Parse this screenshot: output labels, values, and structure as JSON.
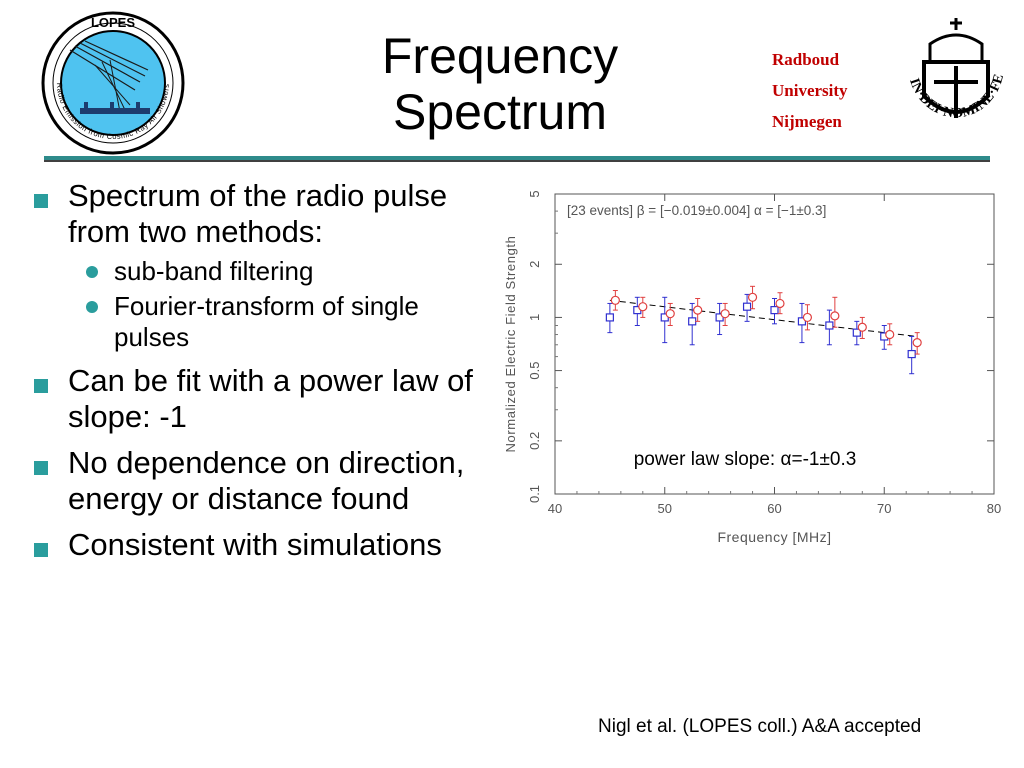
{
  "slide": {
    "title_line1": "Frequency",
    "title_line2": "Spectrum",
    "university": [
      "Radboud",
      "University",
      "Nijmegen"
    ],
    "lopes_logo_text": "LOPES",
    "lopes_logo_ring": "Radio Emission from Cosmic Ray Air Showers",
    "seal_text": "IN·DEI·NOMINE·FELICITER",
    "citation": "Nigl et al. (LOPES coll.) A&A accepted"
  },
  "bullets": [
    {
      "text": "Spectrum of the radio pulse from two methods:",
      "sub": [
        "sub-band filtering",
        "Fourier-transform of single pulses"
      ]
    },
    {
      "text": "Can be fit with a power law of slope: -1",
      "sub": []
    },
    {
      "text": "No dependence on direction, energy or distance found",
      "sub": []
    },
    {
      "text": "Consistent with simulations",
      "sub": []
    }
  ],
  "colors": {
    "accent": "#2a9d9d",
    "university_red": "#c00000",
    "series_blue": "#3030d0",
    "series_red": "#e04040"
  },
  "chart_data": {
    "type": "scatter",
    "xlabel": "Frequency [MHz]",
    "ylabel": "Normalized Electric Field Strength",
    "annotation": "[23 events]  β = [−0.019±0.004]  α = [−1±0.3]",
    "caption": "power law slope: α=-1±0.3",
    "xlim": [
      40,
      80
    ],
    "ylim": [
      0.1,
      5
    ],
    "yscale": "log",
    "xticks": [
      40,
      50,
      60,
      70,
      80
    ],
    "yticks": [
      0.1,
      0.2,
      0.5,
      1,
      2,
      5
    ],
    "ytick_labels": [
      "0.1",
      "0.2",
      "0.5",
      "1",
      "2",
      "5"
    ],
    "series": [
      {
        "marker": "square",
        "color": "#3030d0",
        "x": [
          45,
          47.5,
          50,
          52.5,
          55,
          57.5,
          60,
          62.5,
          65,
          67.5,
          70,
          72.5
        ],
        "y": [
          1.0,
          1.1,
          1.0,
          0.95,
          1.0,
          1.15,
          1.1,
          0.95,
          0.9,
          0.82,
          0.78,
          0.62
        ],
        "err_low": [
          0.82,
          0.9,
          0.72,
          0.7,
          0.8,
          0.95,
          0.92,
          0.72,
          0.7,
          0.7,
          0.66,
          0.48
        ],
        "err_high": [
          1.2,
          1.3,
          1.3,
          1.2,
          1.2,
          1.35,
          1.28,
          1.2,
          1.1,
          0.95,
          0.9,
          0.78
        ]
      },
      {
        "marker": "circle",
        "color": "#e04040",
        "x": [
          45.5,
          48,
          50.5,
          53,
          55.5,
          58,
          60.5,
          63,
          65.5,
          68,
          70.5,
          73
        ],
        "y": [
          1.25,
          1.15,
          1.05,
          1.1,
          1.05,
          1.3,
          1.2,
          1.0,
          1.02,
          0.88,
          0.8,
          0.72
        ],
        "err_low": [
          1.1,
          1.0,
          0.9,
          0.95,
          0.9,
          1.12,
          1.05,
          0.85,
          0.88,
          0.76,
          0.7,
          0.62
        ],
        "err_high": [
          1.42,
          1.3,
          1.2,
          1.28,
          1.2,
          1.5,
          1.38,
          1.18,
          1.3,
          1.0,
          0.92,
          0.82
        ]
      }
    ],
    "fit": {
      "style": "dashed",
      "x": [
        45,
        73
      ],
      "y": [
        1.25,
        0.78
      ]
    }
  }
}
